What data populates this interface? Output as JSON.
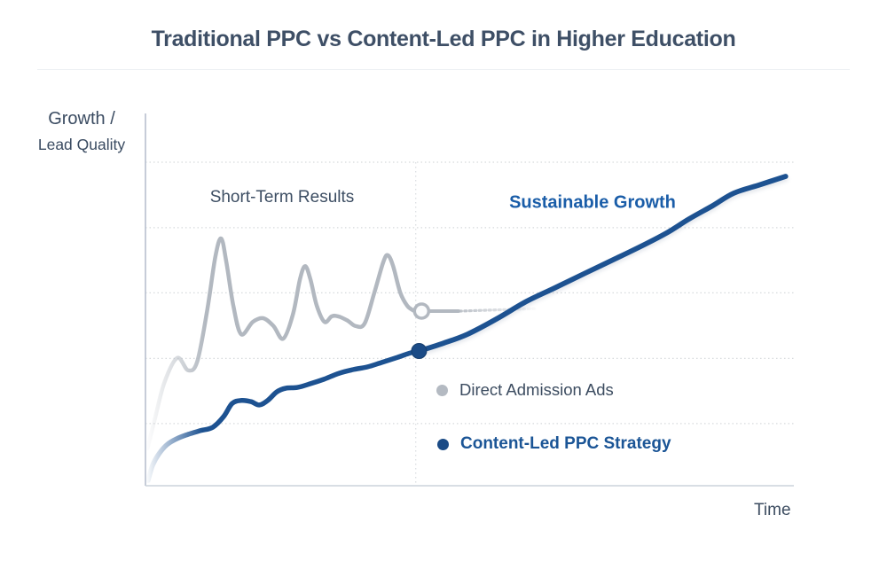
{
  "page": {
    "title": "Traditional PPC vs Content-Led PPC in Higher Education"
  },
  "axis": {
    "y_label_line1": "Growth /",
    "y_label_line2": "Lead Quality",
    "x_label": "Time"
  },
  "annotations": {
    "left_region": "Short-Term Results",
    "right_region": "Sustainable Growth"
  },
  "legend": [
    {
      "label": "Direct Admission Ads",
      "color": "#b4bac2",
      "text_color": "#3c4c60",
      "bold": false
    },
    {
      "label": "Content-Led PPC Strategy",
      "color": "#1b4b86",
      "text_color": "#1b5596",
      "bold": true
    }
  ],
  "colors": {
    "title_text": "#3e4f66",
    "dark_text": "#3c4c60",
    "accent_blue": "#1d5291",
    "accent_blue_text": "#1a5da8",
    "series_gray": "#b2b8c0",
    "gridline": "#d6d9dc",
    "axis_vertical": "#b7c0ce",
    "axis_horizontal": "#ccd3db"
  },
  "chart_data": {
    "type": "line",
    "title": "Traditional PPC vs Content-Led PPC in Higher Education",
    "xlabel": "Time",
    "ylabel": "Growth / Lead Quality",
    "x_range": [
      0,
      100
    ],
    "y_range": [
      0,
      100
    ],
    "grid": "horizontal-dotted",
    "grid_y": [
      16.7,
      34.2,
      51.8,
      69.3,
      86.9
    ],
    "region_divider_x": 41.8,
    "legend_position": "inside-right-middle",
    "series": [
      {
        "name": "Direct Admission Ads",
        "color": "#b2b8c0",
        "style": "solid, fades in at origin, ends with open circle then dotted fade-out trail",
        "points": [
          [
            0.3,
            10.0
          ],
          [
            1.4,
            17.6
          ],
          [
            2.9,
            27.6
          ],
          [
            4.9,
            34.3
          ],
          [
            6.6,
            31.0
          ],
          [
            8.0,
            33.3
          ],
          [
            9.5,
            46.7
          ],
          [
            10.8,
            61.4
          ],
          [
            11.7,
            66.4
          ],
          [
            12.5,
            60.2
          ],
          [
            13.6,
            48.3
          ],
          [
            14.8,
            40.7
          ],
          [
            16.6,
            44.0
          ],
          [
            18.2,
            45.0
          ],
          [
            19.8,
            42.9
          ],
          [
            21.3,
            39.5
          ],
          [
            22.8,
            46.0
          ],
          [
            23.9,
            55.5
          ],
          [
            24.7,
            59.0
          ],
          [
            25.5,
            55.5
          ],
          [
            26.5,
            48.3
          ],
          [
            27.7,
            44.0
          ],
          [
            28.8,
            45.5
          ],
          [
            29.8,
            45.5
          ],
          [
            31.3,
            44.3
          ],
          [
            32.5,
            42.9
          ],
          [
            33.9,
            43.6
          ],
          [
            35.4,
            51.9
          ],
          [
            36.8,
            60.2
          ],
          [
            37.5,
            61.9
          ],
          [
            38.3,
            59.0
          ],
          [
            39.4,
            51.9
          ],
          [
            40.5,
            48.3
          ],
          [
            41.4,
            47.1
          ]
        ],
        "end_marker": {
          "type": "open-circle",
          "x": 42.7,
          "y": 46.9
        },
        "trail_solid": [
          [
            43.9,
            46.9
          ],
          [
            48.4,
            46.9
          ]
        ],
        "trail_dotted": [
          [
            48.6,
            46.9
          ],
          [
            60.6,
            47.6
          ]
        ]
      },
      {
        "name": "Content-Led PPC Strategy",
        "color": "#1d5291",
        "style": "solid, fades in at origin, filled dot at region transition, accelerating growth after",
        "points_before_marker": [
          [
            0.4,
            1.4
          ],
          [
            1.1,
            5.5
          ],
          [
            2.1,
            8.6
          ],
          [
            3.3,
            11.0
          ],
          [
            4.8,
            12.6
          ],
          [
            6.6,
            13.8
          ],
          [
            8.5,
            14.8
          ],
          [
            10.4,
            15.7
          ],
          [
            12.1,
            18.6
          ],
          [
            13.4,
            22.1
          ],
          [
            14.8,
            22.9
          ],
          [
            16.3,
            22.6
          ],
          [
            17.6,
            21.7
          ],
          [
            18.9,
            22.9
          ],
          [
            20.3,
            25.2
          ],
          [
            21.7,
            26.2
          ],
          [
            23.5,
            26.4
          ],
          [
            25.5,
            27.4
          ],
          [
            27.6,
            28.6
          ],
          [
            29.9,
            30.2
          ],
          [
            32.1,
            31.2
          ],
          [
            34.3,
            31.9
          ],
          [
            36.5,
            33.1
          ],
          [
            39.0,
            34.5
          ],
          [
            41.0,
            35.7
          ],
          [
            42.3,
            36.2
          ]
        ],
        "marker": {
          "type": "filled-circle",
          "x": 42.3,
          "y": 36.2
        },
        "points_after_marker": [
          [
            42.3,
            36.2
          ],
          [
            46.1,
            38.3
          ],
          [
            49.8,
            40.7
          ],
          [
            54.3,
            44.8
          ],
          [
            58.9,
            49.5
          ],
          [
            63.5,
            53.3
          ],
          [
            68.0,
            57.1
          ],
          [
            72.7,
            61.0
          ],
          [
            77.2,
            64.8
          ],
          [
            80.8,
            68.1
          ],
          [
            84.1,
            71.7
          ],
          [
            87.7,
            75.2
          ],
          [
            91.0,
            78.6
          ],
          [
            95.1,
            80.9
          ],
          [
            99.0,
            83.1
          ]
        ]
      }
    ]
  }
}
